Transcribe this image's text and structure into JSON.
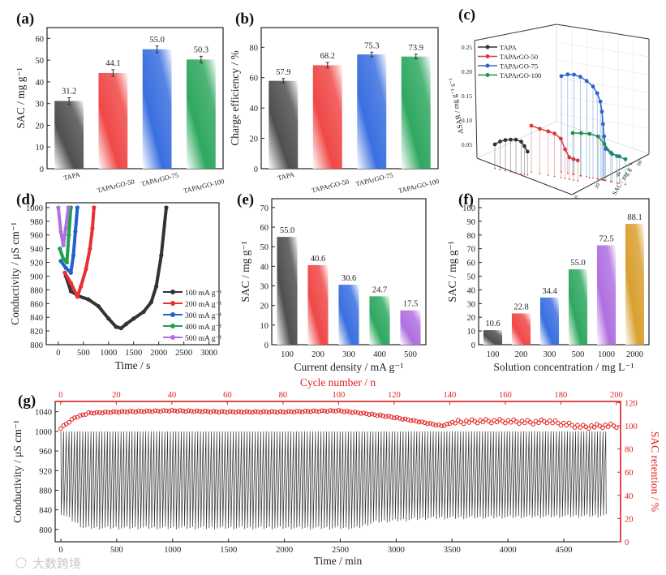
{
  "figure": {
    "watermark": "大数跨境"
  },
  "chart_data": [
    {
      "id": "a",
      "panel_label": "(a)",
      "type": "bar",
      "title": "",
      "xlabel": "",
      "ylabel": "SAC / mg g⁻¹",
      "categories": [
        "TAPA",
        "TAPArGO-50",
        "TAPArGO-75",
        "TAPArGO-100"
      ],
      "values": [
        31.2,
        44.1,
        55.0,
        50.3
      ],
      "value_labels": [
        "31.2",
        "44.1",
        "55.0",
        "50.3"
      ],
      "errors": [
        1.5,
        1.5,
        1.5,
        1.5
      ],
      "ylim": [
        0,
        65
      ],
      "yticks": [
        "0",
        "10",
        "20",
        "30",
        "40",
        "50",
        "60"
      ],
      "ytick_values": [
        0,
        10,
        20,
        30,
        40,
        50,
        60
      ],
      "colors": [
        "#505050",
        "#f04848",
        "#3a6fe0",
        "#2fa860"
      ]
    },
    {
      "id": "b",
      "panel_label": "(b)",
      "type": "bar",
      "title": "",
      "xlabel": "",
      "ylabel": "Charge efficiency / %",
      "categories": [
        "TAPA",
        "TAPArGO-50",
        "TAPArGO-75",
        "TAPArGO-100"
      ],
      "values": [
        57.9,
        68.2,
        75.3,
        73.9
      ],
      "value_labels": [
        "57.9",
        "68.2",
        "75.3",
        "73.9"
      ],
      "errors": [
        1.5,
        1.8,
        1.5,
        1.5
      ],
      "ylim": [
        0,
        93
      ],
      "yticks": [
        "0",
        "20",
        "40",
        "60",
        "80"
      ],
      "ytick_values": [
        0,
        20,
        40,
        60,
        80
      ],
      "colors": [
        "#505050",
        "#f04848",
        "#3a6fe0",
        "#2fa860"
      ]
    },
    {
      "id": "c",
      "panel_label": "(c)",
      "type": "line",
      "title": "",
      "xlabel": "SAC / mg g⁻¹",
      "ylabel": "ASAR / mg g⁻¹ s⁻¹",
      "yticks": [
        "0.05",
        "0.10",
        "0.15",
        "0.20",
        "0.25"
      ],
      "ytick_values": [
        0.05,
        0.1,
        0.15,
        0.2,
        0.25
      ],
      "xticks": [
        "0",
        "20",
        "40",
        "60"
      ],
      "legend_position": "top-left",
      "series": [
        {
          "name": "TAPA",
          "color": "#333333",
          "points": [
            [
              0,
              0.05
            ],
            [
              5,
              0.058
            ],
            [
              10,
              0.063
            ],
            [
              15,
              0.066
            ],
            [
              20,
              0.068
            ],
            [
              25,
              0.066
            ],
            [
              28,
              0.058
            ],
            [
              31,
              0.048
            ]
          ]
        },
        {
          "name": "TAPArGO-50",
          "color": "#e03838",
          "points": [
            [
              0,
              0.095
            ],
            [
              8,
              0.092
            ],
            [
              16,
              0.09
            ],
            [
              22,
              0.088
            ],
            [
              28,
              0.08
            ],
            [
              32,
              0.06
            ],
            [
              36,
              0.045
            ],
            [
              40,
              0.043
            ],
            [
              44,
              0.042
            ]
          ]
        },
        {
          "name": "TAPArGO-75",
          "color": "#2e62d0",
          "points": [
            [
              0,
              0.197
            ],
            [
              6,
              0.203
            ],
            [
              12,
              0.205
            ],
            [
              18,
              0.203
            ],
            [
              24,
              0.197
            ],
            [
              30,
              0.188
            ],
            [
              34,
              0.176
            ],
            [
              37,
              0.16
            ],
            [
              38.5,
              0.14
            ],
            [
              39.5,
              0.115
            ],
            [
              40.5,
              0.09
            ],
            [
              42,
              0.065
            ],
            [
              48,
              0.057
            ],
            [
              55,
              0.055
            ]
          ]
        },
        {
          "name": "TAPArGO-100",
          "color": "#229050",
          "points": [
            [
              0,
              0.085
            ],
            [
              8,
              0.088
            ],
            [
              16,
              0.09
            ],
            [
              24,
              0.088
            ],
            [
              30,
              0.075
            ],
            [
              36,
              0.06
            ],
            [
              42,
              0.055
            ],
            [
              50,
              0.052
            ]
          ]
        }
      ]
    },
    {
      "id": "d",
      "panel_label": "(d)",
      "type": "line",
      "title": "",
      "xlabel": "Time / s",
      "ylabel": "Conductivity / μS cm⁻¹",
      "xlim": [
        -240,
        3200
      ],
      "ylim": [
        800,
        1007
      ],
      "xticks": [
        "0",
        "500",
        "1000",
        "1500",
        "2000",
        "2500",
        "3000"
      ],
      "xtick_values": [
        0,
        500,
        1000,
        1500,
        2000,
        2500,
        3000
      ],
      "yticks": [
        "800",
        "820",
        "840",
        "860",
        "880",
        "900",
        "920",
        "940",
        "960",
        "980",
        "1000"
      ],
      "ytick_values": [
        800,
        820,
        840,
        860,
        880,
        900,
        920,
        940,
        960,
        980,
        1000
      ],
      "legend_position": "bottom-right",
      "series": [
        {
          "name": "100 mA g⁻¹",
          "color": "#333333",
          "marker": "square",
          "points": [
            [
              150,
              900
            ],
            [
              250,
              878
            ],
            [
              400,
              871
            ],
            [
              600,
              866
            ],
            [
              800,
              856
            ],
            [
              1000,
              838
            ],
            [
              1150,
              826
            ],
            [
              1250,
              824
            ],
            [
              1350,
              830
            ],
            [
              1500,
              838
            ],
            [
              1700,
              848
            ],
            [
              1850,
              862
            ],
            [
              1950,
              885
            ],
            [
              2050,
              930
            ],
            [
              2150,
              1000
            ]
          ]
        },
        {
          "name": "200 mA g⁻¹",
          "color": "#e83030",
          "marker": "circle",
          "points": [
            [
              130,
              905
            ],
            [
              250,
              890
            ],
            [
              380,
              870
            ],
            [
              450,
              885
            ],
            [
              550,
              910
            ],
            [
              630,
              940
            ],
            [
              680,
              970
            ],
            [
              710,
              1000
            ]
          ]
        },
        {
          "name": "300 mA g⁻¹",
          "color": "#2060d0",
          "marker": "triangle-up",
          "points": [
            [
              50,
              922
            ],
            [
              150,
              912
            ],
            [
              250,
              905
            ],
            [
              300,
              930
            ],
            [
              340,
              965
            ],
            [
              380,
              1000
            ]
          ]
        },
        {
          "name": "400 mA g⁻¹",
          "color": "#20a050",
          "marker": "triangle-down",
          "points": [
            [
              30,
              940
            ],
            [
              100,
              925
            ],
            [
              170,
              920
            ],
            [
              210,
              960
            ],
            [
              250,
              1000
            ]
          ]
        },
        {
          "name": "500 mA g⁻¹",
          "color": "#b070e0",
          "marker": "diamond",
          "points": [
            [
              0,
              1000
            ],
            [
              50,
              965
            ],
            [
              100,
              945
            ],
            [
              150,
              970
            ],
            [
              200,
              1000
            ]
          ]
        }
      ]
    },
    {
      "id": "e",
      "panel_label": "(e)",
      "type": "bar",
      "title": "",
      "xlabel": "Current density / mA g⁻¹",
      "ylabel": "SAC / mg g⁻¹",
      "categories": [
        "100",
        "200",
        "300",
        "400",
        "500"
      ],
      "values": [
        55.0,
        40.6,
        30.6,
        24.7,
        17.5
      ],
      "value_labels": [
        "55.0",
        "40.6",
        "30.6",
        "24.7",
        "17.5"
      ],
      "ylim": [
        0,
        74.5
      ],
      "yticks": [
        "0",
        "10",
        "20",
        "30",
        "40",
        "50",
        "60",
        "70"
      ],
      "ytick_values": [
        0,
        10,
        20,
        30,
        40,
        50,
        60,
        70
      ],
      "colors": [
        "#505050",
        "#f04848",
        "#3a6fe0",
        "#2fa860",
        "#b070e0"
      ]
    },
    {
      "id": "f",
      "panel_label": "(f)",
      "type": "bar",
      "title": "",
      "xlabel": "Solution concentration / mg L⁻¹",
      "ylabel": "SAC / mg g⁻¹",
      "categories": [
        "100",
        "200",
        "300",
        "500",
        "1000",
        "2000"
      ],
      "values": [
        10.6,
        22.8,
        34.4,
        55.0,
        72.5,
        88.1
      ],
      "value_labels": [
        "10.6",
        "22.8",
        "34.4",
        "55.0",
        "72.5",
        "88.1"
      ],
      "ylim": [
        0,
        106.5
      ],
      "yticks": [
        "0",
        "10",
        "20",
        "30",
        "40",
        "50",
        "60",
        "70",
        "80",
        "90",
        "100"
      ],
      "ytick_values": [
        0,
        10,
        20,
        30,
        40,
        50,
        60,
        70,
        80,
        90,
        100
      ],
      "colors": [
        "#505050",
        "#f04848",
        "#3a6fe0",
        "#2fa860",
        "#b070e0",
        "#d9a030"
      ]
    },
    {
      "id": "g",
      "panel_label": "(g)",
      "type": "line",
      "title": "",
      "xlabel": "Time / min",
      "ylabel": "Conductivity / μS cm⁻¹",
      "x2label": "Cycle number / n",
      "y2label": "SAC retention / %",
      "xlim": [
        -51,
        5008
      ],
      "ylim": [
        775,
        1061
      ],
      "x2lim": [
        -2,
        201.5
      ],
      "y2lim": [
        0,
        121
      ],
      "xticks": [
        "0",
        "500",
        "1000",
        "1500",
        "2000",
        "2500",
        "3000",
        "3500",
        "4000",
        "4500"
      ],
      "xtick_values": [
        0,
        500,
        1000,
        1500,
        2000,
        2500,
        3000,
        3500,
        4000,
        4500
      ],
      "yticks": [
        "800",
        "840",
        "880",
        "920",
        "960",
        "1000",
        "1040"
      ],
      "ytick_values": [
        800,
        840,
        880,
        920,
        960,
        1000,
        1040
      ],
      "x2ticks": [
        "0",
        "20",
        "40",
        "60",
        "80",
        "100",
        "120",
        "140",
        "160",
        "180",
        "200"
      ],
      "x2tick_values": [
        0,
        20,
        40,
        60,
        80,
        100,
        120,
        140,
        160,
        180,
        200
      ],
      "y2ticks": [
        "0",
        "20",
        "40",
        "60",
        "80",
        "100",
        "120"
      ],
      "y2tick_values": [
        0,
        20,
        40,
        60,
        80,
        100,
        120
      ],
      "conductivity": {
        "cycles": 200,
        "time_end": 4900,
        "upper": 1000,
        "lower_envelope": [
          [
            0,
            830
          ],
          [
            200,
            800
          ],
          [
            2650,
            800
          ],
          [
            2800,
            812
          ],
          [
            3300,
            820
          ],
          [
            4900,
            825
          ]
        ],
        "color": "#333333"
      },
      "retention": {
        "color": "#e02020",
        "points": [
          [
            0,
            98
          ],
          [
            5,
            107
          ],
          [
            10,
            111
          ],
          [
            20,
            112
          ],
          [
            40,
            113
          ],
          [
            60,
            112
          ],
          [
            80,
            112
          ],
          [
            100,
            113
          ],
          [
            108,
            111
          ],
          [
            118,
            108
          ],
          [
            128,
            104
          ],
          [
            137,
            100
          ],
          [
            142,
            103
          ],
          [
            150,
            104
          ],
          [
            160,
            104
          ],
          [
            170,
            103
          ],
          [
            175,
            104
          ],
          [
            180,
            102
          ],
          [
            188,
            99
          ],
          [
            195,
            100
          ],
          [
            200,
            100
          ]
        ]
      }
    }
  ]
}
